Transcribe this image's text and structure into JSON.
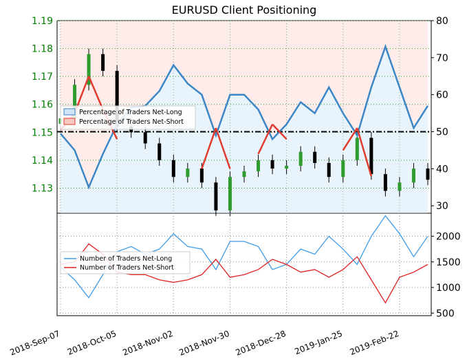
{
  "chart_data": [
    {
      "type": "candlestick",
      "title": "EURUSD Client Positioning",
      "price_axis": {
        "side": "left",
        "ylim": [
          1.121,
          1.19
        ],
        "ticks": [
          1.13,
          1.14,
          1.15,
          1.16,
          1.17,
          1.18,
          1.19
        ],
        "tick_labels": [
          "1.13",
          "1.14",
          "1.15",
          "1.16",
          "1.17",
          "1.18",
          "1.19"
        ],
        "color": "#008000"
      },
      "percent_axis": {
        "side": "right",
        "ylim": [
          28,
          80
        ],
        "ticks": [
          30,
          40,
          50,
          60,
          70,
          80
        ],
        "tick_labels": [
          "30",
          "40",
          "50",
          "60",
          "70",
          "80"
        ]
      },
      "reference_line": {
        "axis": "percent",
        "value": 50,
        "style": "dash-dot"
      },
      "x_dates": [
        "2018-09-07",
        "2018-09-14",
        "2018-09-21",
        "2018-09-28",
        "2018-10-05",
        "2018-10-12",
        "2018-10-19",
        "2018-10-26",
        "2018-11-02",
        "2018-11-09",
        "2018-11-16",
        "2018-11-23",
        "2018-11-30",
        "2018-12-07",
        "2018-12-14",
        "2018-12-21",
        "2018-12-28",
        "2019-01-04",
        "2019-01-11",
        "2019-01-18",
        "2019-01-25",
        "2019-02-01",
        "2019-02-08",
        "2019-02-15",
        "2019-02-22",
        "2019-03-01",
        "2019-03-06"
      ],
      "price_close": [
        1.155,
        1.167,
        1.178,
        1.172,
        1.152,
        1.15,
        1.146,
        1.14,
        1.134,
        1.137,
        1.132,
        1.122,
        1.134,
        1.136,
        1.14,
        1.137,
        1.138,
        1.143,
        1.139,
        1.134,
        1.14,
        1.148,
        1.135,
        1.129,
        1.132,
        1.137,
        1.133
      ],
      "series": [
        {
          "name": "Percentage of Traders Net-Long",
          "axis": "percent",
          "color": "#3d86c6",
          "values": [
            49.5,
            45.0,
            35.0,
            44.0,
            52.0,
            56.5,
            57.0,
            61.0,
            68.0,
            63.0,
            60.0,
            49.0,
            60.0,
            60.0,
            56.0,
            48.0,
            52.0,
            58.0,
            55.0,
            62.0,
            55.0,
            49.0,
            62.0,
            73.0,
            62.0,
            51.0,
            57.0
          ]
        },
        {
          "name": "Percentage of Traders Net-Short",
          "axis": "percent",
          "color": "#e03b2e",
          "values": [
            50.5,
            55.0,
            65.0,
            56.0,
            48.0,
            43.5,
            43.0,
            39.0,
            32.0,
            37.0,
            40.0,
            51.0,
            40.0,
            40.0,
            44.0,
            52.0,
            48.0,
            42.0,
            45.0,
            38.0,
            45.0,
            51.0,
            38.0,
            27.0,
            38.0,
            49.0,
            43.0
          ]
        }
      ],
      "legend": {
        "placement": "left",
        "entries": [
          "Percentage of Traders Net-Long",
          "Percentage of Traders Net-Short"
        ]
      }
    },
    {
      "type": "line",
      "yaxis": {
        "side": "right",
        "ylim": [
          450,
          2450
        ],
        "ticks": [
          500,
          1000,
          1500,
          2000
        ],
        "tick_labels": [
          "500",
          "1000",
          "1500",
          "2000"
        ]
      },
      "x_tick_labels": [
        "2018-Sep-07",
        "2018-Oct-05",
        "2018-Nov-02",
        "2018-Nov-30",
        "2018-Dec-28",
        "2019-Jan-25",
        "2019-Feb-22"
      ],
      "series": [
        {
          "name": "Number of Traders Net-Long",
          "color": "#3d9be8",
          "values": [
            1400,
            1150,
            800,
            1250,
            1700,
            1800,
            1650,
            1750,
            2050,
            1800,
            1750,
            1350,
            1900,
            1900,
            1800,
            1350,
            1450,
            1750,
            1650,
            2000,
            1750,
            1450,
            2000,
            2400,
            2050,
            1600,
            2000
          ]
        },
        {
          "name": "Number of Traders Net-Short",
          "color": "#e02020",
          "values": [
            1450,
            1500,
            1850,
            1650,
            1300,
            1250,
            1250,
            1150,
            1100,
            1150,
            1250,
            1550,
            1200,
            1250,
            1350,
            1550,
            1450,
            1300,
            1350,
            1200,
            1350,
            1600,
            1150,
            700,
            1200,
            1300,
            1450
          ]
        }
      ],
      "legend": {
        "placement": "left",
        "entries": [
          "Number of Traders Net-Long",
          "Number of Traders Net-Short"
        ]
      }
    }
  ]
}
